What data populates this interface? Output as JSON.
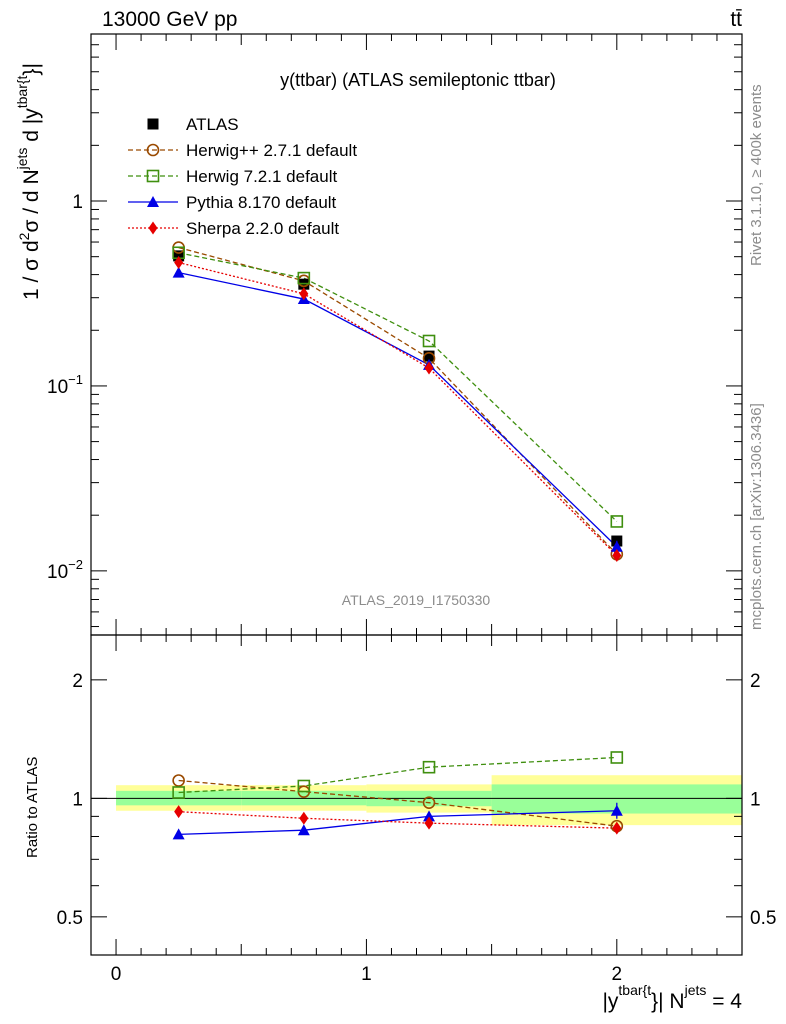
{
  "header": {
    "left": "13000 GeV pp",
    "right": "tt̄"
  },
  "side_text": {
    "top": "Rivet 3.1.10, ≥ 400k events",
    "bottom": "mcplots.cern.ch [arXiv:1306.3436]"
  },
  "chart_data": [
    {
      "type": "line",
      "title": "y(ttbar) (ATLAS semileptonic ttbar)",
      "watermark": "ATLAS_2019_I1750330",
      "ylabel": {
        "main": "1 / σ d",
        "sup1": "2",
        "mid": "σ / d N",
        "sup2": "jets",
        "tail": " d |y",
        "sup3": "tbar{t",
        "end": "}|"
      },
      "yscale": "log",
      "ylim": [
        0.0045,
        8
      ],
      "xlim": [
        -0.1,
        2.5
      ],
      "y_ticks": [
        {
          "value": 1,
          "label": "1"
        },
        {
          "value": 0.1,
          "label": "10",
          "sup": "−1"
        },
        {
          "value": 0.01,
          "label": "10",
          "sup": "−2"
        }
      ],
      "x": [
        0.25,
        0.75,
        1.25,
        2.0
      ],
      "legend_position": "top-left",
      "series": [
        {
          "name": "ATLAS",
          "marker": "square-filled",
          "color": "#000000",
          "line": "none",
          "values": [
            0.505,
            0.355,
            0.145,
            0.0145
          ]
        },
        {
          "name": "Herwig++ 2.7.1 default",
          "marker": "circle-open",
          "color": "#9a4a00",
          "line": "dashed",
          "values": [
            0.56,
            0.37,
            0.141,
            0.0123
          ]
        },
        {
          "name": "Herwig 7.2.1 default",
          "marker": "square-open",
          "color": "#3f8f0f",
          "line": "dashed",
          "values": [
            0.525,
            0.383,
            0.175,
            0.0185
          ]
        },
        {
          "name": "Pythia 8.170 default",
          "marker": "triangle-filled",
          "color": "#0000e6",
          "line": "solid",
          "values": [
            0.41,
            0.295,
            0.13,
            0.0135
          ]
        },
        {
          "name": "Sherpa 2.2.0 default",
          "marker": "diamond-filled",
          "color": "#e60000",
          "line": "dotted",
          "values": [
            0.465,
            0.315,
            0.125,
            0.0121
          ]
        }
      ]
    },
    {
      "type": "line",
      "ylabel": "Ratio to ATLAS",
      "xlabel": {
        "main": "|y",
        "sup": "tbar{t",
        "tail": "}| N",
        "sup2": "jets",
        "end": " = 4"
      },
      "yscale": "log",
      "ylim": [
        0.4,
        2.6
      ],
      "xlim": [
        -0.1,
        2.5
      ],
      "y_ticks": [
        {
          "value": 0.5,
          "label": "0.5"
        },
        {
          "value": 1,
          "label": "1"
        },
        {
          "value": 2,
          "label": "2"
        }
      ],
      "x_ticks": [
        {
          "value": 0,
          "label": "0"
        },
        {
          "value": 1,
          "label": "1"
        },
        {
          "value": 2,
          "label": "2"
        }
      ],
      "x": [
        0.25,
        0.75,
        1.25,
        2.0
      ],
      "uncertainty_bands": [
        {
          "x_range": [
            0,
            0.5
          ],
          "yellow": [
            0.93,
            1.08
          ],
          "green": [
            0.96,
            1.045
          ]
        },
        {
          "x_range": [
            0.5,
            1.0
          ],
          "yellow": [
            0.93,
            1.08
          ],
          "green": [
            0.96,
            1.045
          ]
        },
        {
          "x_range": [
            1.0,
            1.5
          ],
          "yellow": [
            0.92,
            1.085
          ],
          "green": [
            0.955,
            1.045
          ]
        },
        {
          "x_range": [
            1.5,
            2.5
          ],
          "yellow": [
            0.855,
            1.145
          ],
          "green": [
            0.915,
            1.085
          ]
        }
      ],
      "series": [
        {
          "name": "Herwig++ 2.7.1 default",
          "marker": "circle-open",
          "color": "#9a4a00",
          "line": "dashed",
          "values": [
            1.11,
            1.04,
            0.975,
            0.85
          ]
        },
        {
          "name": "Herwig 7.2.1 default",
          "marker": "square-open",
          "color": "#3f8f0f",
          "line": "dashed",
          "values": [
            1.035,
            1.075,
            1.2,
            1.27
          ]
        },
        {
          "name": "Pythia 8.170 default",
          "marker": "triangle-filled",
          "color": "#0000e6",
          "line": "solid",
          "values": [
            0.81,
            0.83,
            0.9,
            0.93
          ]
        },
        {
          "name": "Sherpa 2.2.0 default",
          "marker": "diamond-filled",
          "color": "#e60000",
          "line": "dotted",
          "values": [
            0.925,
            0.89,
            0.865,
            0.84
          ]
        }
      ]
    }
  ]
}
